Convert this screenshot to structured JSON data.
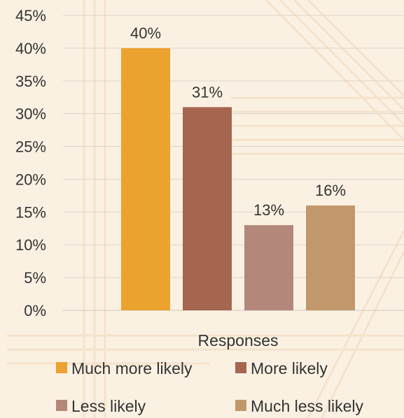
{
  "chart_data": {
    "type": "bar",
    "title": "",
    "xlabel": "Responses",
    "ylabel": "",
    "categories": [
      "Responses"
    ],
    "ylim": [
      0,
      45
    ],
    "yticks": [
      "0%",
      "5%",
      "10%",
      "15%",
      "20%",
      "25%",
      "30%",
      "35%",
      "40%",
      "45%"
    ],
    "grid": true,
    "legend_position": "bottom",
    "series": [
      {
        "name": "Much more likely",
        "values": [
          40
        ],
        "label": "40%",
        "color": "#eca22e"
      },
      {
        "name": "More likely",
        "values": [
          31
        ],
        "label": "31%",
        "color": "#a5654e"
      },
      {
        "name": "Less likely",
        "values": [
          13
        ],
        "label": "13%",
        "color": "#b4877b"
      },
      {
        "name": "Much less likely",
        "values": [
          16
        ],
        "label": "16%",
        "color": "#c2976b"
      }
    ]
  }
}
